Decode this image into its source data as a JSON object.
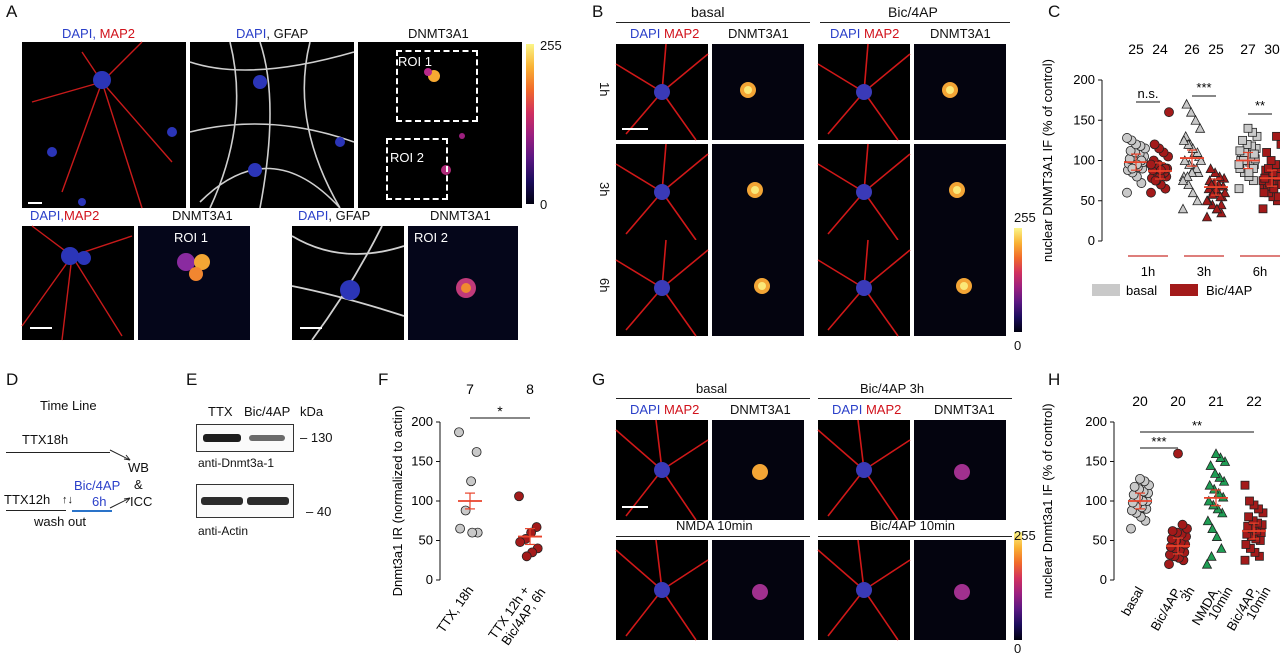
{
  "panels": {
    "A": "A",
    "B": "B",
    "C": "C",
    "D": "D",
    "E": "E",
    "F": "F",
    "G": "G",
    "H": "H"
  },
  "panelA": {
    "dapi": "DAPI",
    "comma": ",",
    "map2": " MAP2",
    "map2b": "MAP2",
    "gfap": " GFAP",
    "dnmt": "DNMT3A1",
    "roi1": "ROI 1",
    "roi2": "ROI 2",
    "cb_top": "255",
    "cb_bot": "0"
  },
  "panelB": {
    "basal": "basal",
    "bic": "Bic/4AP",
    "dapi": "DAPI",
    "map2": "MAP2",
    "dnmt": "DNMT3A1",
    "rows": [
      "1h",
      "3h",
      "6h"
    ],
    "cb_top": "255",
    "cb_bot": "0"
  },
  "panelC": {
    "ylabel": "nuclear DNMT3A1 IF (% of control)",
    "yticks": [
      "0",
      "50",
      "100",
      "150",
      "200"
    ],
    "groups": [
      "1h",
      "3h",
      "6h"
    ],
    "counts": [
      "25",
      "24",
      "26",
      "25",
      "27",
      "30"
    ],
    "sig": [
      "n.s.",
      "***",
      "**"
    ],
    "legend": [
      "basal",
      "Bic/4AP"
    ]
  },
  "panelD": {
    "title": "Time Line",
    "ttx18": "TTX18h",
    "ttx12": "TTX12h",
    "arrows": "↑↓",
    "bic": "Bic/4AP",
    "bic6": "6h",
    "wash": "wash out",
    "wb": "WB",
    "amp": "&",
    "icc": "ICC"
  },
  "panelE": {
    "ttx": "TTX",
    "bic": "Bic/4AP",
    "kda": "kDa",
    "m130": "– 130",
    "m40": "– 40",
    "ab1": "anti-Dnmt3a-1",
    "ab2": "anti-Actin"
  },
  "panelF": {
    "ylabel": "Dnmt3a1 IR (normalized to actin)",
    "yticks": [
      "0",
      "50",
      "100",
      "150",
      "200"
    ],
    "counts": [
      "7",
      "8"
    ],
    "sig": "*",
    "xlabels": [
      "TTX, 18h",
      "TTX 12h +",
      "Bic/4AP, 6h"
    ]
  },
  "panelG": {
    "basal": "basal",
    "bic3": "Bic/4AP 3h",
    "nmda": "NMDA 10min",
    "bic10": "Bic/4AP 10min",
    "dapi": "DAPI",
    "map2": "MAP2",
    "dnmt": "DNMT3A1",
    "cb_top": "255",
    "cb_bot": "0"
  },
  "panelH": {
    "ylabel": "nuclear Dnmt3a1 IF (% of control)",
    "yticks": [
      "0",
      "50",
      "100",
      "150",
      "200"
    ],
    "counts": [
      "20",
      "20",
      "21",
      "22"
    ],
    "sig": [
      "***",
      "**"
    ],
    "xlabels": [
      "basal",
      "Bic/4AP,",
      "3h",
      "NMDA,",
      "10min",
      "Bic/4AP,",
      "10min"
    ]
  },
  "chart_data": [
    {
      "type": "scatter",
      "ylabel": "nuclear DNMT3A1 IF (% of control)",
      "ylim": [
        0,
        200
      ],
      "categories": [
        "1h",
        "3h",
        "6h"
      ],
      "series": [
        {
          "name": "basal",
          "points_1h": [
            60,
            72,
            80,
            85,
            88,
            90,
            92,
            95,
            96,
            98,
            100,
            100,
            102,
            105,
            108,
            110,
            112,
            115,
            118,
            120,
            125,
            128,
            100,
            95,
            90
          ],
          "points_3h": [
            40,
            50,
            60,
            70,
            80,
            85,
            90,
            95,
            100,
            105,
            110,
            120,
            130,
            140,
            150,
            160,
            170,
            100,
            90,
            85,
            80,
            75,
            110,
            115,
            120,
            125
          ],
          "points_6h": [
            65,
            75,
            80,
            85,
            90,
            95,
            98,
            100,
            100,
            102,
            105,
            108,
            110,
            115,
            118,
            120,
            125,
            130,
            135,
            140,
            100,
            95,
            90,
            85,
            110,
            112,
            108
          ],
          "mean": [
            98,
            103,
            100
          ]
        },
        {
          "name": "Bic/4AP",
          "points_1h": [
            60,
            65,
            70,
            75,
            78,
            80,
            82,
            85,
            88,
            90,
            92,
            95,
            100,
            105,
            110,
            115,
            120,
            160,
            85,
            80,
            75,
            95,
            90,
            88
          ],
          "points_3h": [
            30,
            35,
            40,
            45,
            50,
            55,
            60,
            62,
            65,
            68,
            70,
            72,
            75,
            78,
            80,
            85,
            90,
            60,
            55,
            65,
            70,
            50,
            45,
            40,
            58
          ],
          "points_6h": [
            40,
            50,
            55,
            60,
            65,
            70,
            72,
            75,
            78,
            80,
            82,
            85,
            88,
            90,
            95,
            100,
            110,
            120,
            130,
            70,
            68,
            75,
            80,
            85,
            90,
            60,
            55,
            65,
            72,
            78
          ],
          "mean": [
            87,
            67,
            78
          ]
        }
      ],
      "n": [
        25,
        24,
        26,
        25,
        27,
        30
      ],
      "significance": [
        "n.s.",
        "***",
        "**"
      ]
    },
    {
      "type": "scatter",
      "ylabel": "Dnmt3a1 IR (normalized to actin)",
      "ylim": [
        0,
        200
      ],
      "categories": [
        "TTX, 18h",
        "TTX 12h + Bic/4AP, 6h"
      ],
      "series": [
        {
          "name": "TTX, 18h",
          "values": [
            187,
            162,
            125,
            88,
            65,
            60,
            60
          ],
          "mean": 100
        },
        {
          "name": "TTX 12h + Bic/4AP, 6h",
          "values": [
            106,
            67,
            60,
            52,
            48,
            40,
            35,
            30
          ],
          "mean": 55
        }
      ],
      "n": [
        7,
        8
      ],
      "significance": [
        "*"
      ]
    },
    {
      "type": "scatter",
      "ylabel": "nuclear Dnmt3a1 IF (% of control)",
      "ylim": [
        0,
        200
      ],
      "categories": [
        "basal",
        "Bic/4AP, 3h",
        "NMDA, 10min",
        "Bic/4AP, 10min"
      ],
      "series": [
        {
          "name": "basal",
          "values": [
            65,
            75,
            80,
            85,
            88,
            90,
            92,
            95,
            98,
            100,
            100,
            105,
            108,
            110,
            112,
            115,
            118,
            120,
            125,
            128
          ],
          "mean": 100
        },
        {
          "name": "Bic/4AP, 3h",
          "values": [
            20,
            25,
            28,
            30,
            32,
            35,
            38,
            40,
            42,
            45,
            48,
            50,
            52,
            55,
            58,
            60,
            62,
            65,
            70,
            160
          ],
          "mean": 43
        },
        {
          "name": "NMDA, 10min",
          "values": [
            20,
            40,
            55,
            65,
            75,
            85,
            90,
            95,
            100,
            105,
            110,
            115,
            120,
            125,
            130,
            135,
            145,
            150,
            155,
            160,
            30
          ],
          "mean": 104
        },
        {
          "name": "Bic/4AP, 10min",
          "values": [
            25,
            30,
            35,
            40,
            45,
            50,
            52,
            55,
            58,
            60,
            62,
            65,
            68,
            70,
            72,
            75,
            80,
            85,
            90,
            95,
            100,
            120
          ],
          "mean": 62
        }
      ],
      "n": [
        20,
        20,
        21,
        22
      ],
      "significance": [
        "***",
        "**"
      ]
    }
  ]
}
